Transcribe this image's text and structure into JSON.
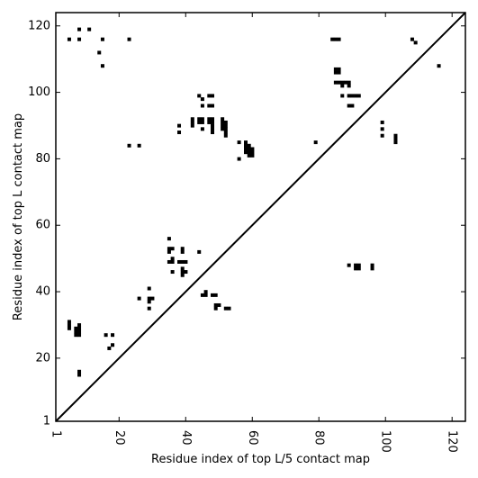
{
  "chart_data": {
    "type": "heatmap",
    "title": "",
    "xlabel": "Residue index of top L/5 contact map",
    "ylabel": "Residue index of top L contact map",
    "xlim": [
      1,
      124
    ],
    "ylim": [
      1,
      124
    ],
    "x_ticks": [
      1,
      20,
      40,
      60,
      80,
      100,
      120
    ],
    "y_ticks": [
      1,
      20,
      40,
      60,
      80,
      100,
      120
    ],
    "x_tick_rotation": "vertical",
    "diagonal": true,
    "grid": false,
    "color": "#000000",
    "upper_contacts": [
      [
        5,
        116
      ],
      [
        8,
        116
      ],
      [
        8,
        119
      ],
      [
        11,
        119
      ],
      [
        14,
        112
      ],
      [
        15,
        116
      ],
      [
        15,
        108
      ],
      [
        23,
        116
      ],
      [
        23,
        84
      ],
      [
        26,
        84
      ],
      [
        38,
        90
      ],
      [
        38,
        88
      ],
      [
        42,
        92
      ],
      [
        42,
        91
      ],
      [
        42,
        90
      ],
      [
        44,
        99
      ],
      [
        44,
        92
      ],
      [
        44,
        91
      ],
      [
        45,
        98
      ],
      [
        45,
        96
      ],
      [
        45,
        92
      ],
      [
        45,
        91
      ],
      [
        45,
        89
      ],
      [
        47,
        99
      ],
      [
        47,
        96
      ],
      [
        47,
        92
      ],
      [
        47,
        91
      ],
      [
        48,
        99
      ],
      [
        48,
        96
      ],
      [
        48,
        92
      ],
      [
        48,
        91
      ],
      [
        48,
        90
      ],
      [
        48,
        89
      ],
      [
        48,
        88
      ],
      [
        51,
        92
      ],
      [
        51,
        91
      ],
      [
        51,
        90
      ],
      [
        51,
        89
      ],
      [
        52,
        91
      ],
      [
        52,
        90
      ],
      [
        52,
        89
      ],
      [
        52,
        88
      ],
      [
        52,
        87
      ],
      [
        56,
        85
      ],
      [
        56,
        80
      ],
      [
        58,
        85
      ],
      [
        58,
        84
      ],
      [
        58,
        83
      ],
      [
        58,
        82
      ],
      [
        59,
        84
      ],
      [
        59,
        83
      ],
      [
        59,
        82
      ],
      [
        59,
        81
      ],
      [
        60,
        83
      ],
      [
        60,
        82
      ],
      [
        60,
        81
      ],
      [
        79,
        85
      ],
      [
        84,
        116
      ],
      [
        85,
        116
      ],
      [
        86,
        116
      ],
      [
        85,
        107
      ],
      [
        85,
        106
      ],
      [
        86,
        107
      ],
      [
        86,
        106
      ],
      [
        85,
        103
      ],
      [
        86,
        103
      ],
      [
        87,
        103
      ],
      [
        88,
        103
      ],
      [
        89,
        103
      ],
      [
        87,
        102
      ],
      [
        89,
        102
      ],
      [
        87,
        99
      ],
      [
        89,
        99
      ],
      [
        90,
        99
      ],
      [
        91,
        99
      ],
      [
        92,
        99
      ],
      [
        89,
        96
      ],
      [
        90,
        96
      ],
      [
        99,
        91
      ],
      [
        99,
        89
      ],
      [
        99,
        87
      ],
      [
        103,
        87
      ],
      [
        103,
        86
      ],
      [
        103,
        85
      ],
      [
        108,
        116
      ],
      [
        109,
        115
      ],
      [
        116,
        108
      ]
    ],
    "lower_contacts": [
      [
        5,
        31
      ],
      [
        5,
        30
      ],
      [
        5,
        29
      ],
      [
        7,
        29
      ],
      [
        7,
        28
      ],
      [
        7,
        27
      ],
      [
        8,
        30
      ],
      [
        8,
        29
      ],
      [
        8,
        28
      ],
      [
        8,
        27
      ],
      [
        8,
        16
      ],
      [
        8,
        15
      ],
      [
        16,
        27
      ],
      [
        17,
        23
      ],
      [
        18,
        27
      ],
      [
        18,
        24
      ],
      [
        26,
        38
      ],
      [
        29,
        41
      ],
      [
        29,
        38
      ],
      [
        29,
        37
      ],
      [
        29,
        35
      ],
      [
        30,
        38
      ],
      [
        35,
        56
      ],
      [
        35,
        53
      ],
      [
        35,
        52
      ],
      [
        35,
        49
      ],
      [
        36,
        53
      ],
      [
        36,
        50
      ],
      [
        36,
        49
      ],
      [
        36,
        46
      ],
      [
        38,
        49
      ],
      [
        39,
        53
      ],
      [
        39,
        52
      ],
      [
        39,
        49
      ],
      [
        39,
        47
      ],
      [
        39,
        46
      ],
      [
        39,
        45
      ],
      [
        40,
        49
      ],
      [
        40,
        46
      ],
      [
        44,
        52
      ],
      [
        45,
        39
      ],
      [
        46,
        40
      ],
      [
        46,
        39
      ],
      [
        48,
        39
      ],
      [
        49,
        39
      ],
      [
        49,
        36
      ],
      [
        49,
        35
      ],
      [
        50,
        36
      ],
      [
        52,
        35
      ],
      [
        53,
        35
      ],
      [
        89,
        48
      ],
      [
        91,
        48
      ],
      [
        91,
        47
      ],
      [
        92,
        48
      ],
      [
        92,
        47
      ],
      [
        96,
        48
      ],
      [
        96,
        47
      ]
    ]
  }
}
